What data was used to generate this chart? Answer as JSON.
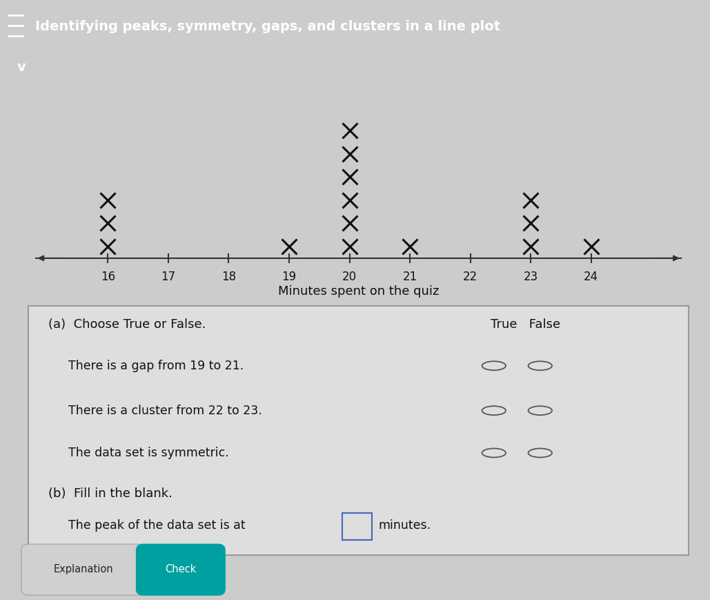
{
  "title": "Identifying peaks, symmetry, gaps, and clusters in a line plot",
  "xlabel": "Minutes spent on the quiz",
  "x_min": 14.8,
  "x_max": 25.5,
  "tick_positions": [
    16,
    17,
    18,
    19,
    20,
    21,
    22,
    23,
    24
  ],
  "data": {
    "16": 3,
    "17": 0,
    "18": 0,
    "19": 1,
    "20": 6,
    "21": 1,
    "22": 0,
    "23": 3,
    "24": 1
  },
  "marker_size": 16,
  "marker_lw": 2.2,
  "marker_color": "#111111",
  "axis_line_color": "#333333",
  "background_color": "#cccccc",
  "header_bg": "#1e3a7a",
  "header_text_color": "#ffffff",
  "panel_bg": "#dedede",
  "panel_border": "#888888",
  "title_fontsize": 14,
  "label_fontsize": 13,
  "tick_fontsize": 12,
  "q_a_heading": "(a)  Choose True or False.",
  "true_false_header": "True   False",
  "questions": [
    "There is a gap from 19 to 21.",
    "There is a cluster from 22 to 23.",
    "The data set is symmetric."
  ],
  "part_b_label": "(b)  Fill in the blank.",
  "part_b_text": "The peak of the data set is at",
  "part_b_suffix": "minutes.",
  "btn1_label": "Explanation",
  "btn2_label": "Check",
  "btn1_bg": "#d0d0d0",
  "btn2_bg": "#00a0a0"
}
